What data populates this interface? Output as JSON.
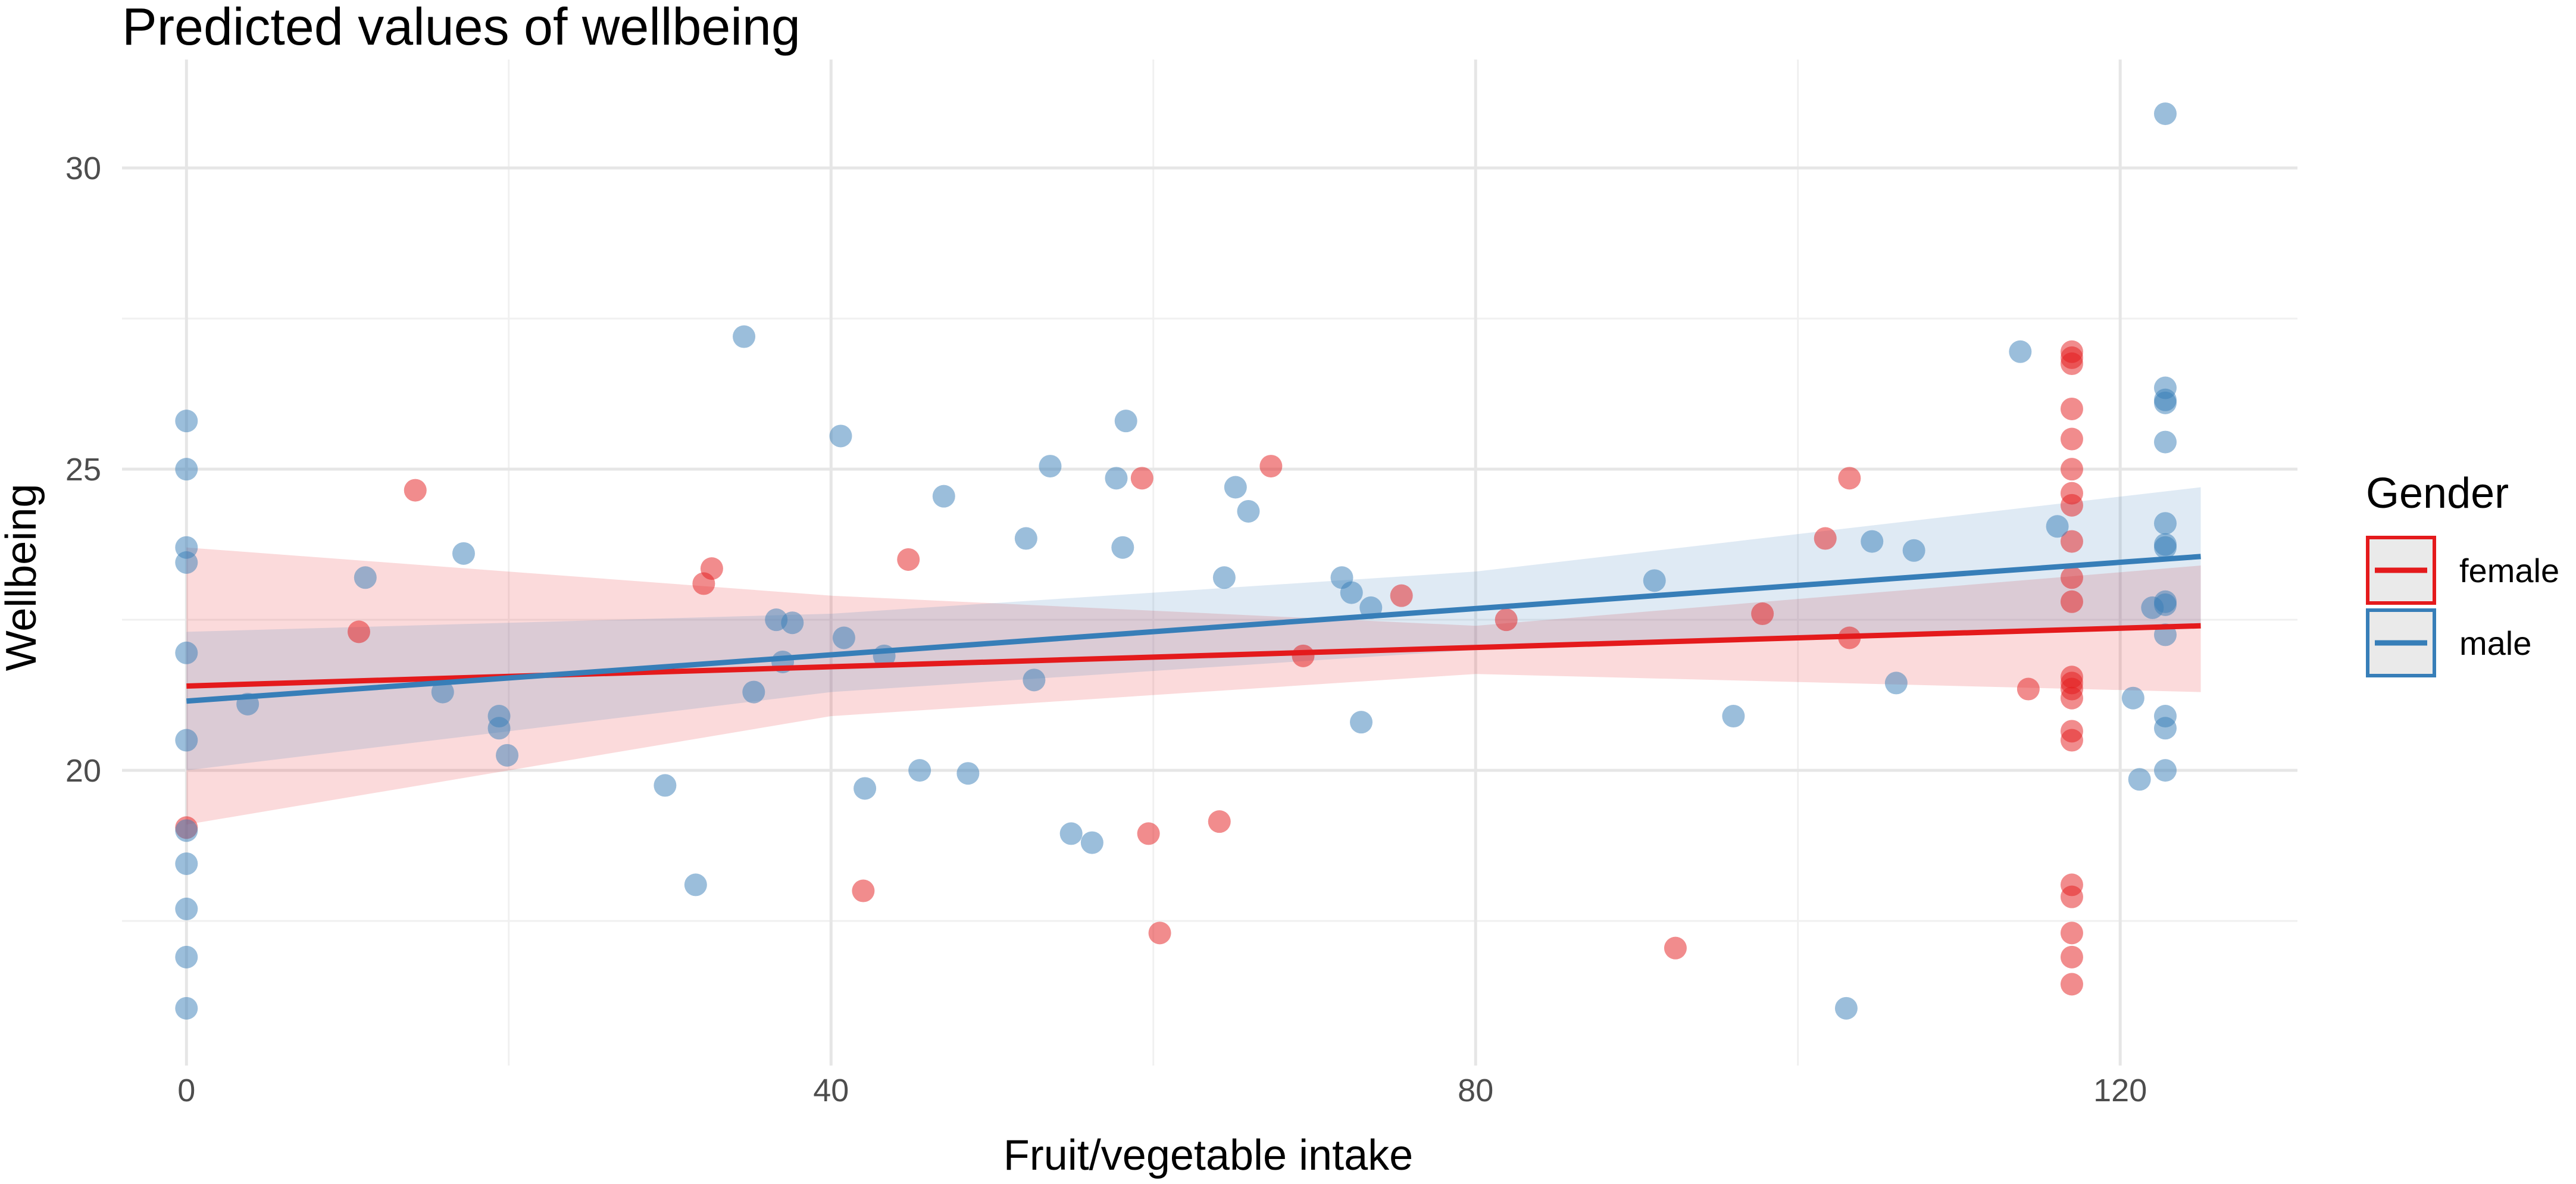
{
  "chart_data": {
    "type": "scatter",
    "title": "Predicted values of wellbeing",
    "xlabel": "Fruit/vegetable intake",
    "ylabel": "Wellbeing",
    "xlim": [
      -4,
      131
    ],
    "ylim": [
      15.1,
      31.8
    ],
    "x_ticks": [
      0,
      40,
      80,
      120
    ],
    "y_ticks": [
      20,
      25,
      30
    ],
    "x_tick_labels": [
      "0",
      "40",
      "80",
      "120"
    ],
    "y_tick_labels": [
      "20",
      "25",
      "30"
    ],
    "x_minor": [
      20,
      60,
      100
    ],
    "y_minor": [
      17.5,
      22.5,
      27.5
    ],
    "grid": true,
    "legend": {
      "title": "Gender",
      "position": "right"
    },
    "series": [
      {
        "name": "female",
        "label": "female",
        "color": "#e41a1c",
        "fit_line": {
          "x": [
            0,
            125
          ],
          "y": [
            21.4,
            22.4
          ]
        },
        "ribbon": {
          "x": [
            0,
            40,
            80,
            125
          ],
          "lower": [
            19.1,
            20.9,
            21.6,
            21.3
          ],
          "upper": [
            23.7,
            22.9,
            22.4,
            23.4
          ]
        },
        "points": [
          [
            0,
            19.05
          ],
          [
            10.7,
            22.3
          ],
          [
            14.2,
            24.65
          ],
          [
            32.1,
            23.1
          ],
          [
            32.6,
            23.35
          ],
          [
            44.8,
            23.5
          ],
          [
            42,
            18
          ],
          [
            59.3,
            24.85
          ],
          [
            59.7,
            18.95
          ],
          [
            60.4,
            17.3
          ],
          [
            64.1,
            19.15
          ],
          [
            67.3,
            25.05
          ],
          [
            69.3,
            21.9
          ],
          [
            75.4,
            22.9
          ],
          [
            81.9,
            22.5
          ],
          [
            92.4,
            17.05
          ],
          [
            97.8,
            22.6
          ],
          [
            101.7,
            23.85
          ],
          [
            103.2,
            24.85
          ],
          [
            103.2,
            22.2
          ],
          [
            114.3,
            21.35
          ],
          [
            117,
            26.95
          ],
          [
            117,
            26.85
          ],
          [
            117,
            26.75
          ],
          [
            117,
            26
          ],
          [
            117,
            25.5
          ],
          [
            117,
            25
          ],
          [
            117,
            24.6
          ],
          [
            117,
            24.4
          ],
          [
            117,
            23.8
          ],
          [
            117,
            23.2
          ],
          [
            117,
            22.8
          ],
          [
            117,
            21.55
          ],
          [
            117,
            21.45
          ],
          [
            117,
            21.35
          ],
          [
            117,
            21.2
          ],
          [
            117,
            20.65
          ],
          [
            117,
            20.5
          ],
          [
            117,
            18.1
          ],
          [
            117,
            17.9
          ],
          [
            117,
            17.3
          ],
          [
            117,
            16.9
          ],
          [
            117,
            16.45
          ]
        ]
      },
      {
        "name": "male",
        "label": "male",
        "color": "#377eb8",
        "fit_line": {
          "x": [
            0,
            125
          ],
          "y": [
            21.15,
            23.55
          ]
        },
        "ribbon": {
          "x": [
            0,
            40,
            80,
            125
          ],
          "lower": [
            20,
            21.3,
            22,
            22.4
          ],
          "upper": [
            22.3,
            22.6,
            23.3,
            24.7
          ]
        },
        "points": [
          [
            0,
            25.8
          ],
          [
            0,
            25
          ],
          [
            0,
            23.7
          ],
          [
            0,
            23.45
          ],
          [
            0,
            21.95
          ],
          [
            0,
            20.5
          ],
          [
            0,
            19
          ],
          [
            0,
            18.45
          ],
          [
            0,
            17.7
          ],
          [
            0,
            16.9
          ],
          [
            0,
            16.05
          ],
          [
            3.8,
            21.1
          ],
          [
            11.1,
            23.2
          ],
          [
            15.9,
            21.3
          ],
          [
            17.2,
            23.6
          ],
          [
            19.4,
            20.9
          ],
          [
            19.4,
            20.7
          ],
          [
            19.9,
            20.25
          ],
          [
            29.7,
            19.75
          ],
          [
            31.6,
            18.1
          ],
          [
            34.6,
            27.2
          ],
          [
            35.2,
            21.3
          ],
          [
            36.6,
            22.5
          ],
          [
            37,
            21.8
          ],
          [
            37.6,
            22.45
          ],
          [
            40.6,
            25.55
          ],
          [
            40.8,
            22.2
          ],
          [
            42.1,
            19.7
          ],
          [
            43.3,
            21.9
          ],
          [
            45.5,
            20
          ],
          [
            47,
            24.55
          ],
          [
            48.5,
            19.95
          ],
          [
            52.1,
            23.85
          ],
          [
            52.6,
            21.5
          ],
          [
            53.6,
            25.05
          ],
          [
            54.9,
            18.95
          ],
          [
            56.2,
            18.8
          ],
          [
            57.7,
            24.85
          ],
          [
            58.1,
            23.7
          ],
          [
            58.3,
            25.8
          ],
          [
            64.4,
            23.2
          ],
          [
            65.1,
            24.7
          ],
          [
            65.9,
            24.3
          ],
          [
            71.7,
            23.2
          ],
          [
            72.3,
            22.95
          ],
          [
            72.9,
            20.8
          ],
          [
            73.5,
            22.7
          ],
          [
            91.1,
            23.15
          ],
          [
            96,
            20.9
          ],
          [
            103,
            16.05
          ],
          [
            104.6,
            23.8
          ],
          [
            106.1,
            21.45
          ],
          [
            107.2,
            23.65
          ],
          [
            113.8,
            26.95
          ],
          [
            116.1,
            24.05
          ],
          [
            120.8,
            21.2
          ],
          [
            121.2,
            19.85
          ],
          [
            122,
            22.7
          ],
          [
            122.8,
            30.9
          ],
          [
            122.8,
            26.35
          ],
          [
            122.8,
            26.15
          ],
          [
            122.8,
            26.1
          ],
          [
            122.8,
            25.45
          ],
          [
            122.8,
            24.1
          ],
          [
            122.8,
            23.75
          ],
          [
            122.8,
            23.7
          ],
          [
            122.8,
            22.8
          ],
          [
            122.8,
            22.75
          ],
          [
            122.8,
            22.25
          ],
          [
            122.8,
            20.9
          ],
          [
            122.8,
            20.7
          ],
          [
            122.8,
            20
          ]
        ]
      }
    ]
  }
}
